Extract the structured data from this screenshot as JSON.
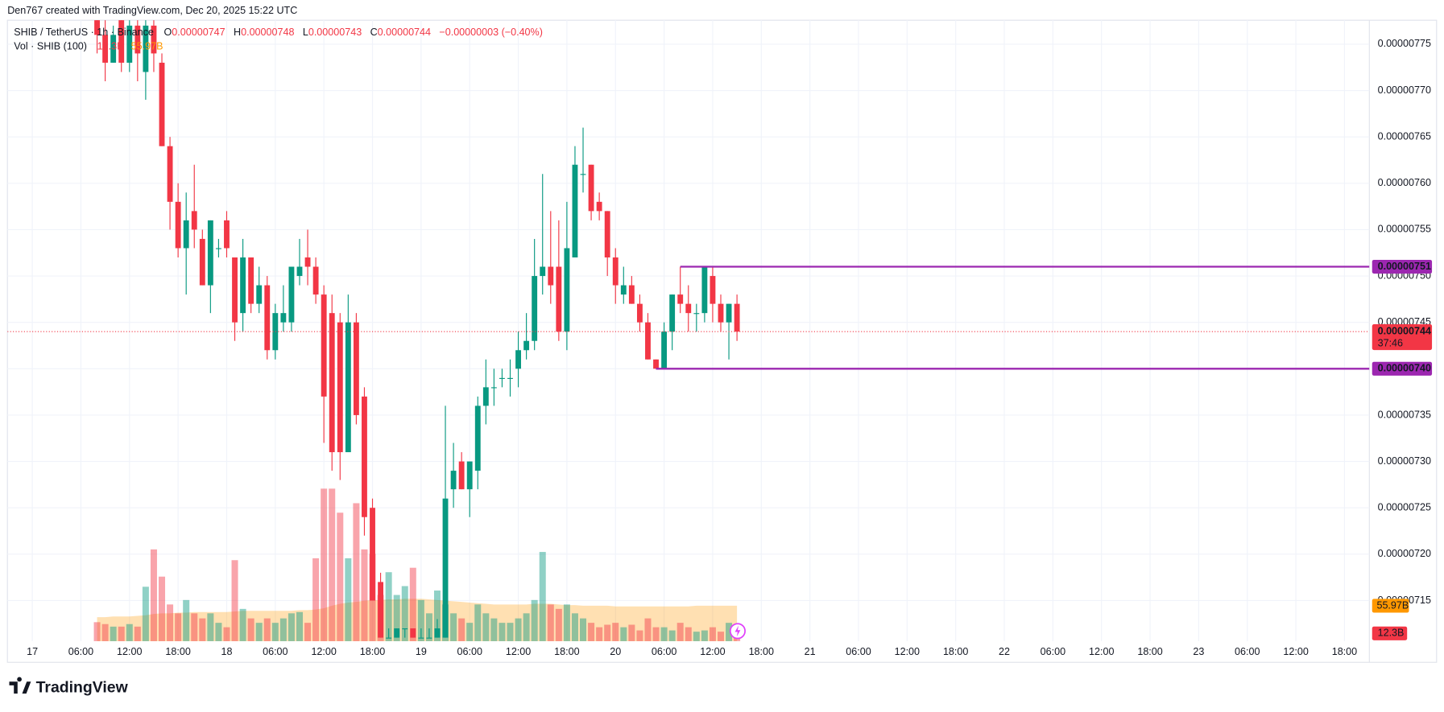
{
  "header": "Den767 created with TradingView.com, Dec 20, 2025 15:22 UTC",
  "footer": "TradingView",
  "chart_data": {
    "type": "candlestick",
    "title": "SHIB / TetherUS · 1h · Binance",
    "ohlc_letters": [
      "O",
      "H",
      "L",
      "C"
    ],
    "change": "−0.00000003 (−0.40%)",
    "countdown": "37:46",
    "up_color": "#089981",
    "down_color": "#f23645",
    "grid": true,
    "x": [
      8,
      9,
      10,
      11,
      12,
      13,
      14,
      15,
      16,
      17,
      18,
      19,
      20,
      21,
      22,
      23,
      24,
      25,
      26,
      27,
      28,
      29,
      30,
      31,
      32,
      33,
      34,
      35,
      36,
      37,
      38,
      39,
      40,
      41,
      42,
      43,
      44,
      45,
      46,
      47,
      48,
      49,
      50,
      51,
      52,
      53,
      54,
      55,
      56,
      57,
      58,
      59,
      60,
      61,
      62,
      63,
      64,
      65,
      66,
      67,
      68,
      69,
      70,
      71,
      72,
      73,
      74,
      75,
      76,
      77,
      78,
      79,
      80,
      81,
      82,
      83,
      84,
      85,
      86,
      87
    ],
    "open": [
      7.79e-06,
      7.76e-06,
      7.73e-06,
      7.78e-06,
      7.73e-06,
      7.77e-06,
      7.72e-06,
      7.77e-06,
      7.73e-06,
      7.64e-06,
      7.58e-06,
      7.53e-06,
      7.57e-06,
      7.54e-06,
      7.49e-06,
      7.53e-06,
      7.56e-06,
      7.52e-06,
      7.46e-06,
      7.52e-06,
      7.47e-06,
      7.49e-06,
      7.42e-06,
      7.45e-06,
      7.45e-06,
      7.5e-06,
      7.52e-06,
      7.51e-06,
      7.48e-06,
      7.46e-06,
      7.45e-06,
      7.31e-06,
      7.45e-06,
      7.37e-06,
      7.25e-06,
      7.17e-06,
      7.11e-06,
      7.11e-06,
      7.12e-06,
      7.12e-06,
      7.11e-06,
      7.11e-06,
      7.11e-06,
      7.11e-06,
      7.27e-06,
      7.3e-06,
      7.27e-06,
      7.29e-06,
      7.36e-06,
      7.38e-06,
      7.39e-06,
      7.39e-06,
      7.4e-06,
      7.42e-06,
      7.43e-06,
      7.5e-06,
      7.51e-06,
      7.51e-06,
      7.44e-06,
      7.52e-06,
      7.61e-06,
      7.62e-06,
      7.58e-06,
      7.57e-06,
      7.52e-06,
      7.48e-06,
      7.49e-06,
      7.47e-06,
      7.45e-06,
      7.41e-06,
      7.4e-06,
      7.44e-06,
      7.48e-06,
      7.47e-06,
      7.46e-06,
      7.46e-06,
      7.5e-06,
      7.47e-06,
      7.45e-06,
      7.47e-06
    ],
    "high": [
      7.8e-06,
      7.78e-06,
      7.77e-06,
      7.79e-06,
      7.78e-06,
      7.79e-06,
      7.79e-06,
      7.79e-06,
      7.74e-06,
      7.65e-06,
      7.6e-06,
      7.59e-06,
      7.62e-06,
      7.55e-06,
      7.56e-06,
      7.54e-06,
      7.57e-06,
      7.52e-06,
      7.54e-06,
      7.52e-06,
      7.51e-06,
      7.5e-06,
      7.47e-06,
      7.49e-06,
      7.51e-06,
      7.54e-06,
      7.55e-06,
      7.52e-06,
      7.49e-06,
      7.48e-06,
      7.46e-06,
      7.48e-06,
      7.46e-06,
      7.38e-06,
      7.26e-06,
      7.18e-06,
      7.12e-06,
      7.12e-06,
      7.12e-06,
      7.12e-06,
      7.12e-06,
      7.12e-06,
      7.13e-06,
      7.36e-06,
      7.32e-06,
      7.31e-06,
      7.3e-06,
      7.37e-06,
      7.41e-06,
      7.4e-06,
      7.4e-06,
      7.41e-06,
      7.44e-06,
      7.46e-06,
      7.54e-06,
      7.61e-06,
      7.57e-06,
      7.56e-06,
      7.58e-06,
      7.64e-06,
      7.66e-06,
      7.62e-06,
      7.59e-06,
      7.57e-06,
      7.53e-06,
      7.51e-06,
      7.5e-06,
      7.48e-06,
      7.46e-06,
      7.41e-06,
      7.45e-06,
      7.48e-06,
      7.51e-06,
      7.49e-06,
      7.47e-06,
      7.51e-06,
      7.51e-06,
      7.48e-06,
      7.47e-06,
      7.48e-06
    ],
    "low": [
      7.74e-06,
      7.71e-06,
      7.73e-06,
      7.72e-06,
      7.72e-06,
      7.71e-06,
      7.69e-06,
      7.72e-06,
      7.64e-06,
      7.55e-06,
      7.52e-06,
      7.48e-06,
      7.53e-06,
      7.49e-06,
      7.46e-06,
      7.52e-06,
      7.52e-06,
      7.43e-06,
      7.44e-06,
      7.46e-06,
      7.46e-06,
      7.41e-06,
      7.41e-06,
      7.44e-06,
      7.44e-06,
      7.49e-06,
      7.49e-06,
      7.47e-06,
      7.32e-06,
      7.29e-06,
      7.28e-06,
      7.31e-06,
      7.34e-06,
      7.22e-06,
      7.15e-06,
      7.11e-06,
      7.11e-06,
      7.11e-06,
      7.11e-06,
      7.11e-06,
      7.11e-06,
      7.11e-06,
      7.11e-06,
      7.11e-06,
      7.25e-06,
      7.27e-06,
      7.24e-06,
      7.27e-06,
      7.34e-06,
      7.36e-06,
      7.38e-06,
      7.37e-06,
      7.38e-06,
      7.41e-06,
      7.42e-06,
      7.48e-06,
      7.47e-06,
      7.43e-06,
      7.42e-06,
      7.52e-06,
      7.59e-06,
      7.56e-06,
      7.56e-06,
      7.5e-06,
      7.47e-06,
      7.47e-06,
      7.47e-06,
      7.44e-06,
      7.41e-06,
      7.4e-06,
      7.4e-06,
      7.42e-06,
      7.46e-06,
      7.44e-06,
      7.44e-06,
      7.45e-06,
      7.45e-06,
      7.44e-06,
      7.41e-06,
      7.43e-06
    ],
    "close": [
      7.76e-06,
      7.73e-06,
      7.76e-06,
      7.73e-06,
      7.77e-06,
      7.74e-06,
      7.77e-06,
      7.74e-06,
      7.64e-06,
      7.58e-06,
      7.53e-06,
      7.56e-06,
      7.55e-06,
      7.49e-06,
      7.56e-06,
      7.53e-06,
      7.53e-06,
      7.45e-06,
      7.52e-06,
      7.47e-06,
      7.49e-06,
      7.42e-06,
      7.46e-06,
      7.46e-06,
      7.51e-06,
      7.51e-06,
      7.51e-06,
      7.48e-06,
      7.37e-06,
      7.31e-06,
      7.31e-06,
      7.45e-06,
      7.35e-06,
      7.24e-06,
      7.15e-06,
      7.11e-06,
      7.11e-06,
      7.12e-06,
      7.12e-06,
      7.11e-06,
      7.11e-06,
      7.11e-06,
      7.12e-06,
      7.26e-06,
      7.29e-06,
      7.27e-06,
      7.3e-06,
      7.36e-06,
      7.38e-06,
      7.38e-06,
      7.39e-06,
      7.39e-06,
      7.42e-06,
      7.43e-06,
      7.5e-06,
      7.51e-06,
      7.49e-06,
      7.44e-06,
      7.53e-06,
      7.62e-06,
      7.61e-06,
      7.57e-06,
      7.57e-06,
      7.52e-06,
      7.49e-06,
      7.49e-06,
      7.47e-06,
      7.45e-06,
      7.41e-06,
      7.4e-06,
      7.44e-06,
      7.48e-06,
      7.47e-06,
      7.46e-06,
      7.46e-06,
      7.51e-06,
      7.47e-06,
      7.45e-06,
      7.47e-06,
      7.44e-06
    ],
    "xlim": [
      -3.07,
      165.07
    ],
    "xticks": [
      {
        "value": 0,
        "label": "17"
      },
      {
        "value": 6,
        "label": "06:00"
      },
      {
        "value": 12,
        "label": "12:00"
      },
      {
        "value": 18,
        "label": "18:00"
      },
      {
        "value": 24,
        "label": "18"
      },
      {
        "value": 30,
        "label": "06:00"
      },
      {
        "value": 36,
        "label": "12:00"
      },
      {
        "value": 42,
        "label": "18:00"
      },
      {
        "value": 48,
        "label": "19"
      },
      {
        "value": 54,
        "label": "06:00"
      },
      {
        "value": 60,
        "label": "12:00"
      },
      {
        "value": 66,
        "label": "18:00"
      },
      {
        "value": 72,
        "label": "20"
      },
      {
        "value": 78,
        "label": "06:00"
      },
      {
        "value": 84,
        "label": "12:00"
      },
      {
        "value": 90,
        "label": "18:00"
      },
      {
        "value": 96,
        "label": "21"
      },
      {
        "value": 102,
        "label": "06:00"
      },
      {
        "value": 108,
        "label": "12:00"
      },
      {
        "value": 114,
        "label": "18:00"
      },
      {
        "value": 120,
        "label": "22"
      },
      {
        "value": 126,
        "label": "06:00"
      },
      {
        "value": 132,
        "label": "12:00"
      },
      {
        "value": 138,
        "label": "18:00"
      },
      {
        "value": 144,
        "label": "23"
      },
      {
        "value": 150,
        "label": "06:00"
      },
      {
        "value": 156,
        "label": "12:00"
      },
      {
        "value": 162,
        "label": "18:00"
      }
    ],
    "ylim": [
      7.1062e-06,
      7.7758e-06
    ],
    "yticks": [
      7.75e-06,
      {
        "value": 7.7e-06,
        "label": "0.00000770"
      },
      7.65e-06,
      {
        "value": 7.6e-06,
        "label": "0.00000760"
      },
      7.55e-06,
      {
        "value": 7.5e-06,
        "label": "0.00000750"
      },
      7.45e-06,
      {
        "value": 7.4e-06,
        "label": "0.00000740"
      },
      7.35e-06,
      {
        "value": 7.3e-06,
        "label": "0.00000730"
      },
      7.25e-06,
      {
        "value": 7.2e-06,
        "label": "0.00000720"
      },
      7.15e-06
    ],
    "hlines": [
      {
        "value": 7.51e-06,
        "label": "0.00000751",
        "from_x": 80,
        "color": "#9c27b0"
      },
      {
        "value": 7.4e-06,
        "label": "0.00000740",
        "from_x": 77,
        "color": "#9c27b0"
      }
    ],
    "volume": {
      "name": "Vol · SHIB (100)",
      "ylim": [
        0,
        250
      ],
      "values": [
        30,
        27,
        23,
        23,
        27,
        23,
        86,
        145,
        102,
        58,
        44,
        65,
        44,
        36,
        44,
        29,
        22,
        128,
        51,
        36,
        29,
        36,
        29,
        36,
        44,
        46,
        29,
        131,
        241,
        241,
        203,
        131,
        218,
        145,
        138,
        73,
        109,
        73,
        87,
        116,
        65,
        44,
        80,
        58,
        44,
        36,
        29,
        58,
        44,
        36,
        29,
        29,
        36,
        44,
        65,
        141,
        58,
        51,
        58,
        44,
        36,
        29,
        22,
        26,
        29,
        22,
        26,
        17,
        36,
        22,
        22,
        17,
        29,
        22,
        15,
        17,
        22,
        15,
        29,
        12.3
      ],
      "last_value_label": "12.3B",
      "ma": {
        "color": "#ff9800",
        "values": [
          38,
          38,
          39,
          39,
          39,
          40,
          41,
          43,
          44,
          44,
          45,
          45,
          46,
          46,
          46,
          46,
          46,
          47,
          48,
          48,
          48,
          48,
          48,
          48,
          48,
          49,
          49,
          50,
          52,
          56,
          59,
          61,
          62,
          64,
          65,
          65,
          66,
          66,
          67,
          67,
          67,
          66,
          65,
          64,
          63,
          62,
          61,
          60,
          59,
          58,
          58,
          58,
          58,
          58,
          59,
          59,
          59,
          58,
          57,
          57,
          56,
          56,
          56,
          56,
          55,
          55,
          55,
          55,
          55,
          55,
          55,
          55,
          55,
          55,
          56,
          56,
          56,
          56,
          56,
          55.97
        ],
        "last_value_label": "55.97B"
      }
    }
  }
}
